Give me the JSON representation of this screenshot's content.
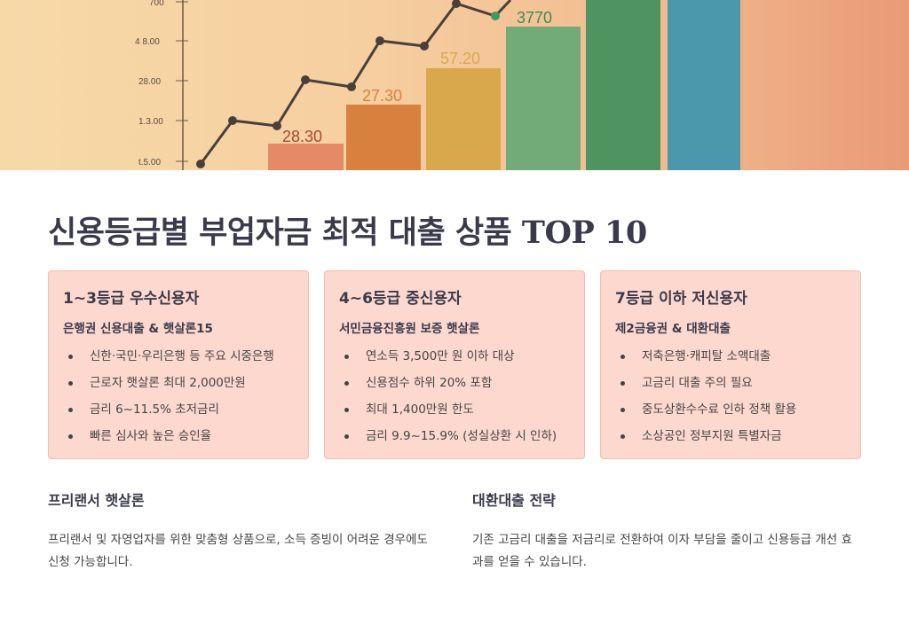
{
  "hero": {
    "y_ticks": [
      "700",
      "4 8.00",
      "28.00",
      "1.3.00",
      "t.5.00"
    ],
    "bar_labels": [
      "28.30",
      "27.30",
      "57.20",
      "3770"
    ]
  },
  "title": "신용등급별 부업자금 최적 대출 상품 TOP 10",
  "cards": [
    {
      "title": "1~3등급 우수신용자",
      "subtitle": "은행권 신용대출 & 햇살론15",
      "items": [
        "신한·국민·우리은행 등 주요 시중은행",
        "근로자 햇살론 최대 2,000만원",
        "금리 6~11.5% 초저금리",
        "빠른 심사와 높은 승인율"
      ]
    },
    {
      "title": "4~6등급 중신용자",
      "subtitle": "서민금융진흥원 보증 햇살론",
      "items": [
        "연소득 3,500만 원 이하 대상",
        "신용점수 하위 20% 포함",
        "최대 1,400만원 한도",
        "금리 9.9~15.9% (성실상환 시 인하)"
      ]
    },
    {
      "title": "7등급 이하 저신용자",
      "subtitle": "제2금융권 & 대환대출",
      "items": [
        "저축은행·캐피탈 소액대출",
        "고금리 대출 주의 필요",
        "중도상환수수료 인하 정책 활용",
        "소상공인 정부지원 특별자금"
      ]
    }
  ],
  "sections": [
    {
      "title": "프리랜서 햇살론",
      "text": "프리랜서 및 자영업자를 위한 맞춤형 상품으로, 소득 증빙이 어려운 경우에도 신청 가능합니다."
    },
    {
      "title": "대환대출 전략",
      "text": "기존 고금리 대출을 저금리로 전환하여 이자 부담을 줄이고 신용등급 개선 효과를 얻을 수 있습니다."
    }
  ]
}
